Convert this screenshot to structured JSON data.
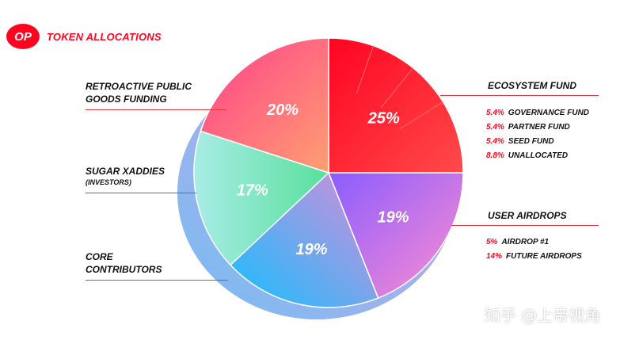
{
  "header": {
    "logo": "OP",
    "title": "TOKEN ALLOCATIONS"
  },
  "labels": {
    "retro": [
      "RETROACTIVE PUBLIC",
      "GOODS FUNDING"
    ],
    "sugar": "SUGAR XADDIES",
    "sugar_sub": "(INVESTORS)",
    "core": [
      "CORE",
      "CONTRIBUTORS"
    ],
    "ecosystem": "ECOSYSTEM FUND",
    "airdrops": "USER AIRDROPS"
  },
  "ecosystem_items": [
    {
      "pct": "5.4%",
      "label": "GOVERNANCE FUND"
    },
    {
      "pct": "5.4%",
      "label": "PARTNER FUND"
    },
    {
      "pct": "5.4%",
      "label": "SEED FUND"
    },
    {
      "pct": "8.8%",
      "label": "UNALLOCATED"
    }
  ],
  "airdrop_items": [
    {
      "pct": "5%",
      "label": "AIRDROP #1"
    },
    {
      "pct": "14%",
      "label": "FUTURE AIRDROPS"
    }
  ],
  "watermark": "知乎 @上帝视角",
  "chart_data": {
    "type": "pie",
    "title": "TOKEN ALLOCATIONS",
    "slices": [
      {
        "name": "ECOSYSTEM FUND",
        "value": 25,
        "label": "25%",
        "color": "#ff0420"
      },
      {
        "name": "USER AIRDROPS",
        "value": 19,
        "label": "19%",
        "color": "#c56cf0"
      },
      {
        "name": "CORE CONTRIBUTORS",
        "value": 19,
        "label": "19%",
        "color": "#7b9cff"
      },
      {
        "name": "SUGAR XADDIES",
        "value": 17,
        "label": "17%",
        "color": "#6fe0b8"
      },
      {
        "name": "RETROACTIVE PUBLIC GOODS FUNDING",
        "value": 20,
        "label": "20%",
        "color": "#ff5a7a"
      }
    ]
  }
}
